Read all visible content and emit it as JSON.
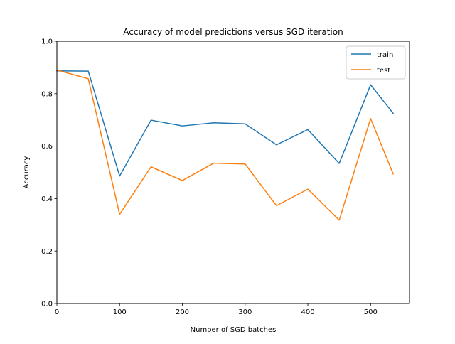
{
  "chart_data": {
    "type": "line",
    "title": "Accuracy of model predictions versus SGD iteration",
    "xlabel": "Number of SGD batches",
    "ylabel": "Accuracy",
    "xlim": [
      0,
      562
    ],
    "ylim": [
      0.0,
      1.0
    ],
    "x_ticks": [
      0,
      100,
      200,
      300,
      400,
      500
    ],
    "x_tick_labels": [
      "0",
      "100",
      "200",
      "300",
      "400",
      "500"
    ],
    "y_ticks": [
      0.0,
      0.2,
      0.4,
      0.6,
      0.8,
      1.0
    ],
    "y_tick_labels": [
      "0.0",
      "0.2",
      "0.4",
      "0.6",
      "0.8",
      "1.0"
    ],
    "grid": false,
    "legend_position": "top-right",
    "x": [
      0,
      50,
      100,
      150,
      200,
      250,
      300,
      350,
      400,
      450,
      500,
      536
    ],
    "series": [
      {
        "name": "train",
        "color": "#1f77b4",
        "values": [
          0.887,
          0.886,
          0.486,
          0.699,
          0.677,
          0.689,
          0.685,
          0.605,
          0.663,
          0.534,
          0.834,
          0.725
        ]
      },
      {
        "name": "test",
        "color": "#ff7f0e",
        "values": [
          0.89,
          0.857,
          0.34,
          0.521,
          0.469,
          0.535,
          0.532,
          0.373,
          0.436,
          0.318,
          0.705,
          0.494
        ]
      }
    ]
  }
}
